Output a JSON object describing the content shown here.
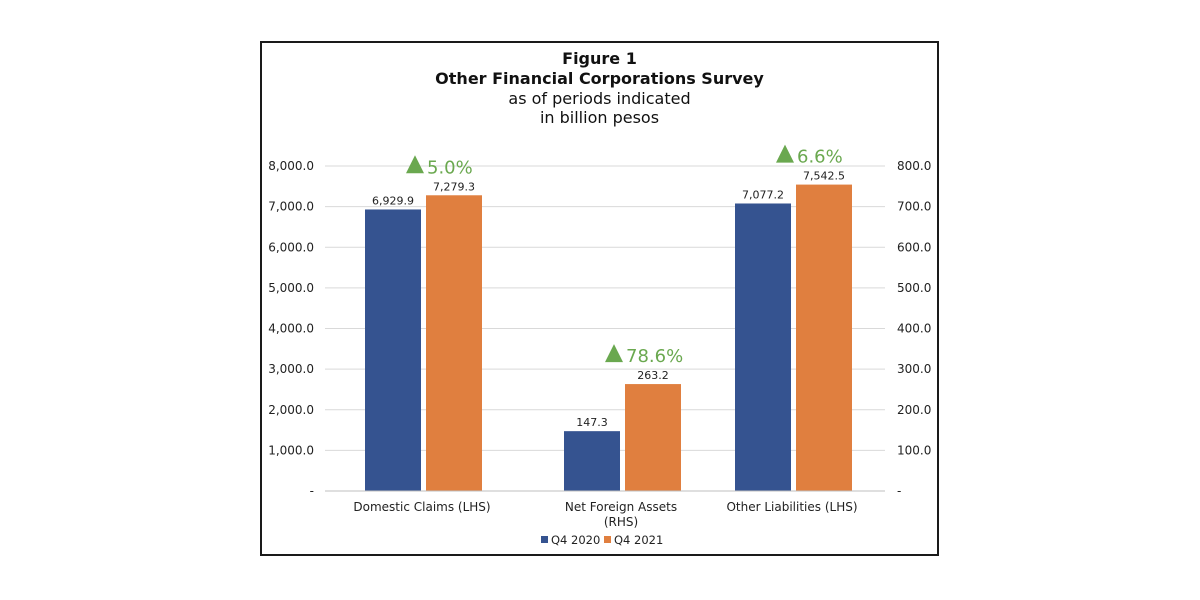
{
  "chart_data": {
    "type": "bar",
    "title": "Figure 1",
    "subtitle_lines": [
      "Other Financial Corporations Survey",
      "as of periods indicated",
      "in billion pesos"
    ],
    "categories": [
      "Domestic Claims (LHS)",
      "Net Foreign Assets (RHS)",
      "Other Liabilities (LHS)"
    ],
    "category_axes": [
      "left",
      "right",
      "left"
    ],
    "series": [
      {
        "name": "Q4 2020",
        "color": "#355390",
        "values": [
          6929.9,
          147.3,
          7077.2
        ],
        "value_labels": [
          "6,929.9",
          "147.3",
          "7,077.2"
        ]
      },
      {
        "name": "Q4 2021",
        "color": "#E07F3F",
        "values": [
          7279.3,
          263.2,
          7542.5
        ],
        "value_labels": [
          "7,279.3",
          "263.2",
          "7,542.5"
        ]
      }
    ],
    "growth_labels": [
      "5.0%",
      "78.6%",
      "6.6%"
    ],
    "growth_color": "#6AA84F",
    "left_axis": {
      "ylim": [
        0,
        8000
      ],
      "ticks": [
        "-",
        "1,000.0",
        "2,000.0",
        "3,000.0",
        "4,000.0",
        "5,000.0",
        "6,000.0",
        "7,000.0",
        "8,000.0"
      ]
    },
    "right_axis": {
      "ylim": [
        0,
        800
      ],
      "ticks": [
        "-",
        "100.0",
        "200.0",
        "300.0",
        "400.0",
        "500.0",
        "600.0",
        "700.0",
        "800.0"
      ]
    },
    "grid": true,
    "legend_position": "bottom"
  }
}
